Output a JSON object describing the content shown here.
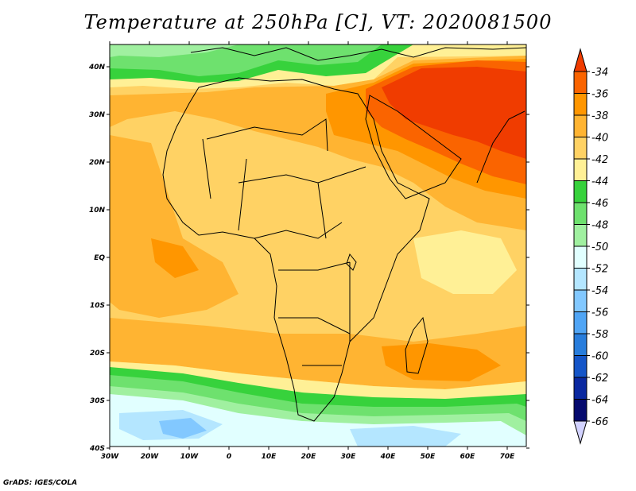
{
  "title": "Temperature at 250hPa [C], VT: 2020081500",
  "footer": "GrADS: IGES/COLA",
  "map": {
    "lon_labels": [
      "30W",
      "20W",
      "10W",
      "0",
      "10E",
      "20E",
      "30E",
      "40E",
      "50E",
      "60E",
      "70E"
    ],
    "lat_labels": [
      "40N",
      "30N",
      "20N",
      "10N",
      "EQ",
      "10S",
      "20S",
      "30S",
      "40S"
    ]
  },
  "colorbar": {
    "labels": [
      "-34",
      "-36",
      "-38",
      "-40",
      "-42",
      "-44",
      "-46",
      "-48",
      "-50",
      "-52",
      "-54",
      "-56",
      "-58",
      "-60",
      "-62",
      "-64",
      "-66"
    ],
    "colors": [
      "#f03c00",
      "#fa6400",
      "#ff9600",
      "#ffb432",
      "#ffd264",
      "#fff096",
      "#37d23c",
      "#6ee16e",
      "#a0f0a0",
      "#e1ffff",
      "#b4e6ff",
      "#82c8ff",
      "#50a5f5",
      "#287ddc",
      "#1455c8",
      "#0a28a0",
      "#050a6e"
    ],
    "below_color": "#d2d2ff"
  }
}
